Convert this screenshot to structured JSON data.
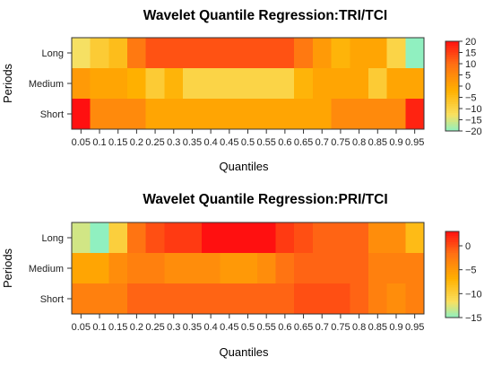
{
  "chart_data": [
    {
      "type": "heatmap",
      "title": "Wavelet Quantile Regression:TRI/TCI",
      "xlabel": "Quantiles",
      "ylabel": "Periods",
      "x": [
        "0.05",
        "0.1",
        "0.15",
        "0.2",
        "0.25",
        "0.3",
        "0.35",
        "0.4",
        "0.45",
        "0.5",
        "0.55",
        "0.6",
        "0.65",
        "0.7",
        "0.75",
        "0.8",
        "0.85",
        "0.9",
        "0.95"
      ],
      "y": [
        "Long",
        "Medium",
        "Short"
      ],
      "values": [
        [
          -13,
          -8,
          -5,
          8,
          13,
          13,
          13,
          13,
          13,
          13,
          13,
          13,
          8,
          2,
          -3,
          0,
          0,
          -10,
          -20
        ],
        [
          2,
          0,
          0,
          -2,
          -8,
          -3,
          -10,
          -10,
          -10,
          -10,
          -10,
          -10,
          -3,
          0,
          0,
          0,
          -8,
          0,
          0
        ],
        [
          20,
          5,
          5,
          5,
          0,
          0,
          0,
          0,
          0,
          0,
          0,
          0,
          0,
          0,
          5,
          5,
          5,
          5,
          18
        ]
      ],
      "colorbar": {
        "min": -20,
        "max": 20,
        "ticks": [
          20,
          15,
          10,
          5,
          0,
          -5,
          -10,
          -15,
          -20
        ]
      }
    },
    {
      "type": "heatmap",
      "title": "Wavelet Quantile Regression:PRI/TCI",
      "xlabel": "Quantiles",
      "ylabel": "Periods",
      "x": [
        "0.05",
        "0.1",
        "0.15",
        "0.2",
        "0.25",
        "0.3",
        "0.35",
        "0.4",
        "0.45",
        "0.5",
        "0.55",
        "0.6",
        "0.65",
        "0.7",
        "0.75",
        "0.8",
        "0.85",
        "0.9",
        "0.95"
      ],
      "y": [
        "Long",
        "Medium",
        "Short"
      ],
      "values": [
        [
          -13,
          -15,
          -10,
          -2,
          0,
          1,
          1,
          3,
          3,
          3,
          3,
          1,
          0,
          -1,
          -1,
          -1,
          -4,
          -4,
          -8
        ],
        [
          -6,
          -6,
          -4,
          -3,
          -3,
          -4,
          -4,
          -4,
          -5,
          -5,
          -4,
          -2,
          -1,
          -1,
          -1,
          -1,
          -3,
          -3,
          -3
        ],
        [
          -3,
          -3,
          -3,
          -1,
          -1,
          -1,
          -1,
          -1,
          -1,
          -1,
          -1,
          -1,
          0,
          0,
          0,
          -1,
          -3,
          -4,
          -3
        ]
      ],
      "colorbar": {
        "min": -15,
        "max": 3,
        "ticks": [
          0,
          -5,
          -10,
          -15
        ]
      }
    }
  ],
  "colors": {
    "low": "#90f0c0",
    "mid_low": "#f9e060",
    "mid": "#ffb000",
    "high": "#ff1010"
  }
}
